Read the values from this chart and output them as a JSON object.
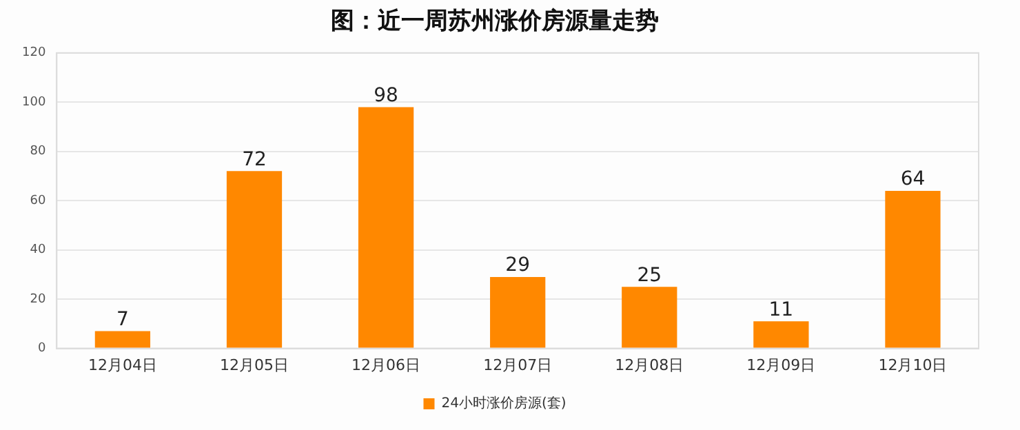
{
  "chart_data": {
    "type": "bar",
    "title": "图：近一周苏州涨价房源量走势",
    "categories": [
      "12月04日",
      "12月05日",
      "12月06日",
      "12月07日",
      "12月08日",
      "12月09日",
      "12月10日"
    ],
    "series": [
      {
        "name": "24小时涨价房源(套)",
        "color": "#ff8800",
        "values": [
          7,
          72,
          98,
          29,
          25,
          11,
          64
        ]
      }
    ],
    "ylim": [
      0,
      120
    ],
    "yticks": [
      0,
      20,
      40,
      60,
      80,
      100,
      120
    ],
    "grid": "y",
    "legend": "bottom",
    "data_labels": true
  }
}
